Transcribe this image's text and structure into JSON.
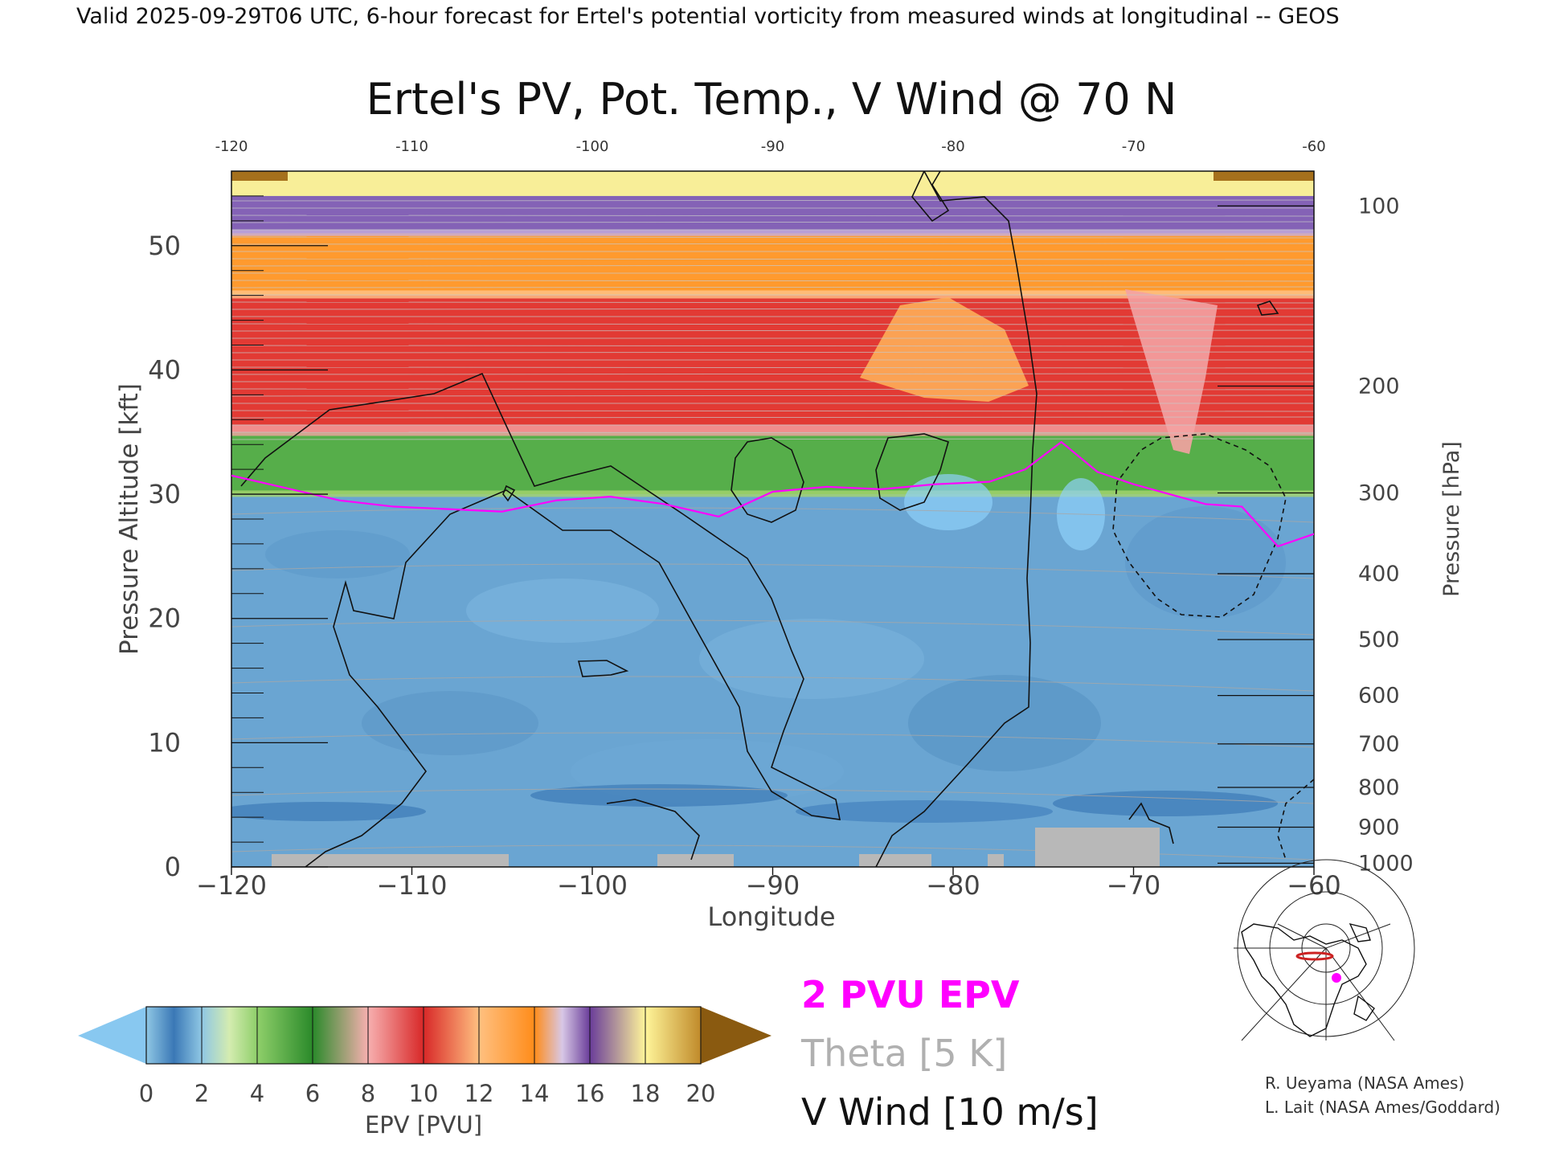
{
  "header": {
    "valid_line": "Valid 2025-09-29T06 UTC, 6-hour forecast for Ertel's potential vorticity from measured winds at longitudinal -- GEOS"
  },
  "chart_data": {
    "type": "heatmap",
    "title": "Ertel's PV, Pot. Temp., V Wind @ 70 N",
    "xlabel": "Longitude",
    "ylabel_left": "Pressure Altitude [kft]",
    "ylabel_right": "Pressure [hPa]",
    "xlim": [
      -120,
      -60
    ],
    "ylim": [
      0,
      56
    ],
    "x_ticks": [
      "−120",
      "−110",
      "−100",
      "−90",
      "−80",
      "−70",
      "−60"
    ],
    "x_tick_values": [
      -120,
      -110,
      -100,
      -90,
      -80,
      -70,
      -60
    ],
    "y_ticks_left": [
      "0",
      "10",
      "20",
      "30",
      "40",
      "50"
    ],
    "y_tick_values_left": [
      0,
      10,
      20,
      30,
      40,
      50
    ],
    "pressure_ticks": [
      {
        "label": "100",
        "kft": 53.2
      },
      {
        "label": "200",
        "kft": 38.7
      },
      {
        "label": "300",
        "kft": 30.1
      },
      {
        "label": "400",
        "kft": 23.6
      },
      {
        "label": "500",
        "kft": 18.3
      },
      {
        "label": "600",
        "kft": 13.8
      },
      {
        "label": "700",
        "kft": 9.9
      },
      {
        "label": "800",
        "kft": 6.4
      },
      {
        "label": "900",
        "kft": 3.2
      },
      {
        "label": "1000",
        "kft": 0.3
      }
    ],
    "pv_bands_kft": [
      {
        "name": "ground-blue",
        "bottom": 0,
        "top": 30
      },
      {
        "name": "green",
        "bottom": 30,
        "top": 35
      },
      {
        "name": "red",
        "bottom": 35,
        "top": 46
      },
      {
        "name": "orange",
        "bottom": 46,
        "top": 51
      },
      {
        "name": "purple",
        "bottom": 51,
        "top": 54
      },
      {
        "name": "yellow",
        "bottom": 54,
        "top": 56
      }
    ],
    "pvu_2_contour": {
      "x": [
        -120,
        -117,
        -114,
        -111,
        -108,
        -105,
        -102,
        -99,
        -96,
        -93,
        -90,
        -87,
        -84,
        -81,
        -78,
        -76,
        -74,
        -72,
        -70,
        -68,
        -66,
        -64,
        -62,
        -60
      ],
      "y": [
        31.5,
        30.5,
        29.5,
        29.0,
        28.8,
        28.6,
        29.5,
        29.8,
        29.2,
        28.2,
        30.2,
        30.6,
        30.4,
        30.8,
        31.0,
        32.0,
        34.2,
        31.8,
        30.8,
        30.0,
        29.2,
        29.0,
        25.8,
        26.8
      ]
    },
    "colorbar": {
      "label": "EPV [PVU]",
      "ticks": [
        "0",
        "2",
        "4",
        "6",
        "8",
        "10",
        "12",
        "14",
        "16",
        "18",
        "20"
      ],
      "colors": [
        "#3a78b6",
        "#8fc7e4",
        "#b8de8c",
        "#5fb44e",
        "#3a9a36",
        "#f4a3a3",
        "#e03030",
        "#ffbf70",
        "#ff8c1a",
        "#c0a8d6",
        "#6a3d9a",
        "#fff59a",
        "#8a5a10"
      ],
      "under_color": "#88c8f0",
      "over_color": "#8a5a10"
    },
    "legend": [
      {
        "label": "2 PVU EPV",
        "color": "#ff00ff"
      },
      {
        "label": "Theta [5 K]",
        "color": "#b0b0b0"
      },
      {
        "label": "V Wind [10 m/s]",
        "color": "#111111"
      }
    ],
    "credits": [
      "R. Ueyama (NASA Ames)",
      "L. Lait (NASA Ames/Goddard)"
    ],
    "inset_map": {
      "marker_color": "#ff00ff",
      "section_color": "#cc2222"
    }
  }
}
